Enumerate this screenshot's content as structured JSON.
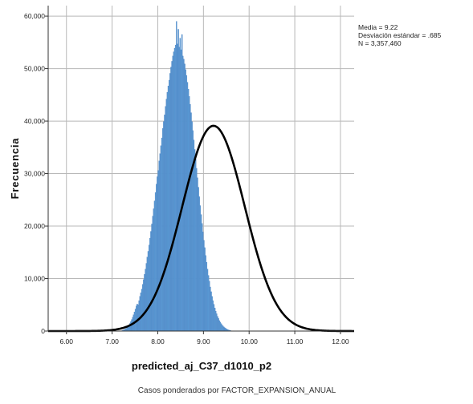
{
  "chart_data": {
    "type": "bar",
    "subtype": "histogram-with-normal-curve",
    "xlabel": "predicted_aj_C37_d1010_p2",
    "ylabel": "Frecuencia",
    "caption": "Casos ponderados por FACTOR_EXPANSION_ANUAL",
    "stats": {
      "mean_label": "Media = 9.22",
      "sd_label": "Desviación estándar = .685",
      "n_label": "N = 3,357,460"
    },
    "mean": 9.22,
    "sd": 0.685,
    "xlim": [
      5.6,
      12.3
    ],
    "ylim": [
      0,
      62000
    ],
    "x_ticks": [
      6.0,
      7.0,
      8.0,
      9.0,
      10.0,
      11.0,
      12.0
    ],
    "x_tick_labels": [
      "6.00",
      "7.00",
      "8.00",
      "9.00",
      "10.00",
      "11.00",
      "12.00"
    ],
    "y_ticks": [
      0,
      10000,
      20000,
      30000,
      40000,
      50000,
      60000
    ],
    "y_tick_labels": [
      "0",
      "10,000",
      "20,000",
      "30,000",
      "40,000",
      "50,000",
      "60,000"
    ],
    "grid": true,
    "bar_color": "#5b9bd5",
    "bar_edge_color": "#4a7fbf",
    "curve_color": "#000000",
    "bin_start": 7.2,
    "bin_width": 0.02,
    "values": [
      80,
      140,
      220,
      300,
      420,
      520,
      700,
      900,
      1150,
      1450,
      1800,
      2200,
      2650,
      3100,
      3650,
      4200,
      4800,
      5150,
      5000,
      5800,
      6600,
      7300,
      8000,
      8900,
      9800,
      10800,
      11800,
      12900,
      14100,
      15200,
      16400,
      17700,
      19000,
      20400,
      21900,
      23300,
      24800,
      26400,
      28000,
      29400,
      30600,
      32400,
      33800,
      35300,
      36800,
      38600,
      39900,
      41200,
      42800,
      44200,
      45500,
      46700,
      47800,
      49100,
      50300,
      51400,
      52400,
      53200,
      53900,
      54500,
      59000,
      54700,
      57500,
      54100,
      55800,
      53600,
      56500,
      52400,
      51800,
      50900,
      49800,
      48700,
      47400,
      46100,
      44700,
      43200,
      41600,
      39900,
      38200,
      36400,
      34600,
      32800,
      31000,
      29200,
      27400,
      25600,
      23900,
      22200,
      20500,
      18900,
      17300,
      15900,
      14400,
      13100,
      11800,
      10600,
      9500,
      8400,
      7500,
      6600,
      5800,
      5100,
      4400,
      3800,
      3300,
      2800,
      2400,
      2000,
      1700,
      1400,
      1150,
      950,
      780,
      620,
      500,
      390,
      300,
      220,
      160,
      110
    ]
  }
}
